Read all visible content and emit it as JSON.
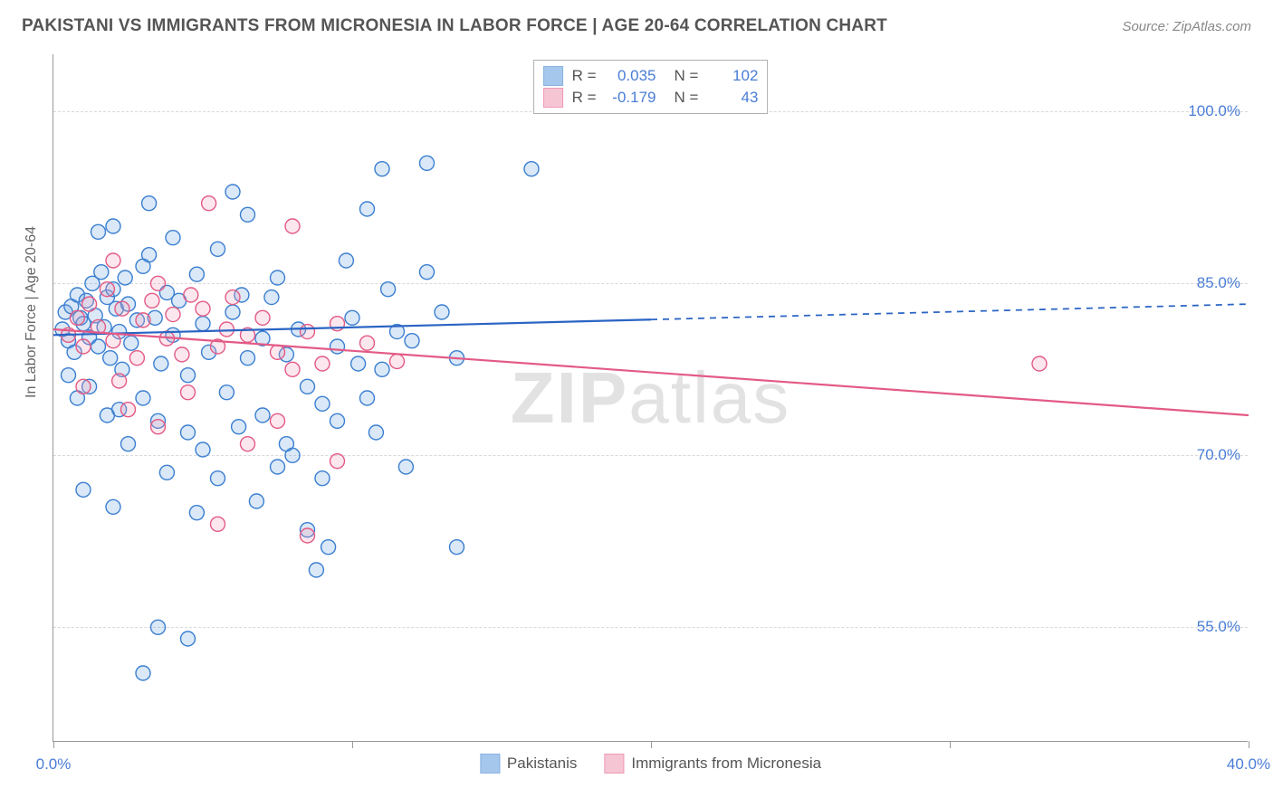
{
  "title": "PAKISTANI VS IMMIGRANTS FROM MICRONESIA IN LABOR FORCE | AGE 20-64 CORRELATION CHART",
  "source": "Source: ZipAtlas.com",
  "ylabel": "In Labor Force | Age 20-64",
  "watermark_bold": "ZIP",
  "watermark_rest": "atlas",
  "chart": {
    "type": "scatter_with_regression",
    "background_color": "#ffffff",
    "grid_color": "#d9d9d9",
    "axis_color": "#999999",
    "xlim": [
      0,
      40
    ],
    "ylim": [
      45,
      105
    ],
    "ytick_values": [
      55,
      70,
      85,
      100
    ],
    "ytick_labels": [
      "55.0%",
      "70.0%",
      "85.0%",
      "100.0%"
    ],
    "xtick_values": [
      0,
      40
    ],
    "xtick_labels": [
      "0.0%",
      "40.0%"
    ],
    "xtick_marks": [
      0,
      10,
      20,
      30,
      40
    ],
    "marker_radius": 8,
    "marker_fill_opacity": 0.25,
    "marker_stroke_width": 1.4,
    "line_width": 2.2
  },
  "series": [
    {
      "key": "pakistanis",
      "label": "Pakistanis",
      "color": "#6ca3e0",
      "stroke": "#3b7fd1",
      "line_color": "#2a64c4",
      "r_label": "R =",
      "r_value": "0.035",
      "n_label": "N =",
      "n_value": "102",
      "regression": {
        "x1": 0,
        "y1": 80.5,
        "x2": 40,
        "y2": 83.2,
        "solid_until_x": 20
      },
      "points": [
        [
          0.3,
          81
        ],
        [
          0.4,
          82.5
        ],
        [
          0.5,
          80
        ],
        [
          0.6,
          83
        ],
        [
          0.7,
          79
        ],
        [
          0.8,
          84
        ],
        [
          0.9,
          82
        ],
        [
          1.0,
          81.5
        ],
        [
          1.1,
          83.5
        ],
        [
          1.2,
          80.3
        ],
        [
          1.3,
          85
        ],
        [
          1.4,
          82.2
        ],
        [
          1.5,
          79.5
        ],
        [
          1.6,
          86
        ],
        [
          1.7,
          81.2
        ],
        [
          1.8,
          83.8
        ],
        [
          1.9,
          78.5
        ],
        [
          2.0,
          84.5
        ],
        [
          2.1,
          82.8
        ],
        [
          2.2,
          80.8
        ],
        [
          2.3,
          77.5
        ],
        [
          2.4,
          85.5
        ],
        [
          2.5,
          83.2
        ],
        [
          2.6,
          79.8
        ],
        [
          2.8,
          81.8
        ],
        [
          3.0,
          75
        ],
        [
          3.2,
          87.5
        ],
        [
          3.4,
          82
        ],
        [
          3.6,
          78
        ],
        [
          3.8,
          84.2
        ],
        [
          2.0,
          90
        ],
        [
          2.2,
          74
        ],
        [
          1.5,
          89.5
        ],
        [
          3.0,
          86.5
        ],
        [
          3.5,
          73
        ],
        [
          4.0,
          80.5
        ],
        [
          4.2,
          83.5
        ],
        [
          4.5,
          77
        ],
        [
          4.8,
          85.8
        ],
        [
          5.0,
          81.5
        ],
        [
          5.2,
          79
        ],
        [
          5.5,
          88
        ],
        [
          5.8,
          75.5
        ],
        [
          6.0,
          82.5
        ],
        [
          6.3,
          84
        ],
        [
          6.5,
          78.5
        ],
        [
          1.0,
          67
        ],
        [
          2.0,
          65.5
        ],
        [
          3.0,
          51
        ],
        [
          4.5,
          54
        ],
        [
          3.2,
          92
        ],
        [
          6.5,
          91
        ],
        [
          7.0,
          80.2
        ],
        [
          7.3,
          83.8
        ],
        [
          7.5,
          85.5
        ],
        [
          7.8,
          78.8
        ],
        [
          8.0,
          70
        ],
        [
          8.2,
          81
        ],
        [
          8.5,
          63.5
        ],
        [
          8.8,
          60
        ],
        [
          9.0,
          68
        ],
        [
          9.2,
          62
        ],
        [
          9.5,
          79.5
        ],
        [
          9.8,
          87
        ],
        [
          10.0,
          82
        ],
        [
          10.2,
          78
        ],
        [
          10.5,
          91.5
        ],
        [
          11.0,
          95
        ],
        [
          11.2,
          84.5
        ],
        [
          11.5,
          80.8
        ],
        [
          4.0,
          89
        ],
        [
          12.5,
          95.5
        ],
        [
          13.0,
          82.5
        ],
        [
          13.5,
          62
        ],
        [
          6.0,
          93
        ],
        [
          4.5,
          72
        ],
        [
          5.0,
          70.5
        ],
        [
          16.0,
          95
        ],
        [
          5.5,
          68
        ],
        [
          7.0,
          73.5
        ],
        [
          3.5,
          55
        ],
        [
          7.5,
          69
        ],
        [
          6.8,
          66
        ],
        [
          8.5,
          76
        ],
        [
          9.5,
          73
        ],
        [
          10.5,
          75
        ],
        [
          11.0,
          77.5
        ],
        [
          12.0,
          80
        ],
        [
          12.5,
          86
        ],
        [
          13.5,
          78.5
        ],
        [
          2.5,
          71
        ],
        [
          3.8,
          68.5
        ],
        [
          4.8,
          65
        ],
        [
          6.2,
          72.5
        ],
        [
          7.8,
          71
        ],
        [
          9.0,
          74.5
        ],
        [
          10.8,
          72
        ],
        [
          11.8,
          69
        ],
        [
          1.2,
          76
        ],
        [
          1.8,
          73.5
        ],
        [
          0.5,
          77
        ],
        [
          0.8,
          75
        ]
      ]
    },
    {
      "key": "micronesia",
      "label": "Immigrants from Micronesia",
      "color": "#f0a0b8",
      "stroke": "#e35a85",
      "line_color": "#e35a85",
      "r_label": "R =",
      "r_value": "-0.179",
      "n_label": "N =",
      "n_value": "43",
      "regression": {
        "x1": 0,
        "y1": 81.0,
        "x2": 40,
        "y2": 73.5,
        "solid_until_x": 40
      },
      "points": [
        [
          0.5,
          80.5
        ],
        [
          0.8,
          82
        ],
        [
          1.0,
          79.5
        ],
        [
          1.2,
          83.2
        ],
        [
          1.5,
          81.2
        ],
        [
          1.8,
          84.5
        ],
        [
          2.0,
          80
        ],
        [
          2.3,
          82.8
        ],
        [
          3.5,
          85
        ],
        [
          2.8,
          78.5
        ],
        [
          3.0,
          81.8
        ],
        [
          3.3,
          83.5
        ],
        [
          2.2,
          76.5
        ],
        [
          3.8,
          80.2
        ],
        [
          4.0,
          82.3
        ],
        [
          4.3,
          78.8
        ],
        [
          4.6,
          84
        ],
        [
          5.0,
          82.8
        ],
        [
          2.0,
          87
        ],
        [
          5.5,
          79.5
        ],
        [
          5.8,
          81
        ],
        [
          6.0,
          83.8
        ],
        [
          5.2,
          92
        ],
        [
          6.5,
          80.5
        ],
        [
          8.0,
          90
        ],
        [
          7.0,
          82
        ],
        [
          7.5,
          79
        ],
        [
          8.0,
          77.5
        ],
        [
          8.5,
          80.8
        ],
        [
          9.0,
          78
        ],
        [
          9.5,
          81.5
        ],
        [
          5.5,
          64
        ],
        [
          10.5,
          79.8
        ],
        [
          6.5,
          71
        ],
        [
          11.5,
          78.2
        ],
        [
          8.5,
          63
        ],
        [
          9.5,
          69.5
        ],
        [
          33.0,
          78
        ],
        [
          1.0,
          76
        ],
        [
          2.5,
          74
        ],
        [
          3.5,
          72.5
        ],
        [
          4.5,
          75.5
        ],
        [
          7.5,
          73
        ]
      ]
    }
  ]
}
